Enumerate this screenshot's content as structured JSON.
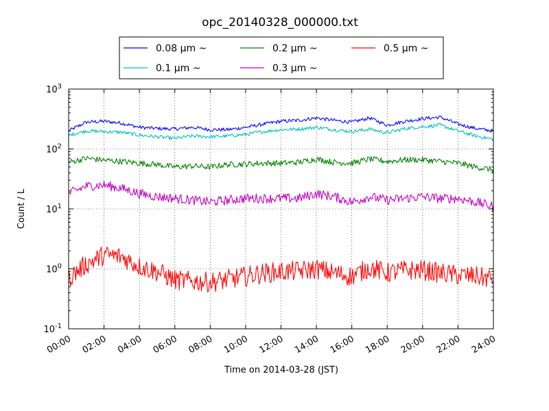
{
  "chart_data": {
    "type": "line",
    "title": "opc_20140328_000000.txt",
    "xlabel": "Time on 2014-03-28 (JST)",
    "ylabel": "Count / L",
    "yscale": "log",
    "ylim": [
      0.1,
      1000
    ],
    "xlim": [
      "00:00",
      "24:00"
    ],
    "grid": true,
    "legend_position": "top-center, above plot, 3 columns",
    "x_tick_labels": [
      "00:00",
      "02:00",
      "04:00",
      "06:00",
      "08:00",
      "10:00",
      "12:00",
      "14:00",
      "16:00",
      "18:00",
      "20:00",
      "22:00",
      "24:00"
    ],
    "y_ticks": [
      {
        "value": 0.1,
        "base": "10",
        "exp": "-1"
      },
      {
        "value": 1,
        "base": "10",
        "exp": "0"
      },
      {
        "value": 10,
        "base": "10",
        "exp": "1"
      },
      {
        "value": 100,
        "base": "10",
        "exp": "2"
      },
      {
        "value": 1000,
        "base": "10",
        "exp": "3"
      }
    ],
    "x": [
      "00:00",
      "01:00",
      "02:00",
      "03:00",
      "04:00",
      "05:00",
      "06:00",
      "07:00",
      "08:00",
      "09:00",
      "10:00",
      "11:00",
      "12:00",
      "13:00",
      "14:00",
      "15:00",
      "16:00",
      "17:00",
      "18:00",
      "19:00",
      "20:00",
      "21:00",
      "22:00",
      "23:00",
      "24:00"
    ],
    "series": [
      {
        "name": "0.08 μm ~",
        "color": "#0000ff",
        "noise": 0.03,
        "values": [
          200,
          280,
          290,
          270,
          230,
          220,
          215,
          230,
          210,
          210,
          230,
          260,
          290,
          300,
          330,
          300,
          280,
          330,
          250,
          290,
          320,
          340,
          260,
          220,
          200
        ]
      },
      {
        "name": "0.1 μm ~",
        "color": "#00bfbf",
        "noise": 0.03,
        "values": [
          170,
          200,
          195,
          190,
          170,
          160,
          150,
          165,
          160,
          165,
          175,
          195,
          210,
          215,
          230,
          210,
          195,
          215,
          185,
          220,
          235,
          250,
          200,
          165,
          145
        ]
      },
      {
        "name": "0.2 μm ~",
        "color": "#008000",
        "noise": 0.05,
        "values": [
          60,
          70,
          65,
          62,
          58,
          55,
          50,
          52,
          50,
          55,
          56,
          58,
          58,
          60,
          68,
          60,
          58,
          68,
          62,
          66,
          66,
          62,
          58,
          50,
          45
        ]
      },
      {
        "name": "0.3 μm ~",
        "color": "#bf00bf",
        "noise": 0.08,
        "values": [
          18,
          24,
          25,
          22,
          18,
          16,
          15,
          14,
          13,
          14,
          15,
          15,
          15,
          15,
          18,
          16,
          13,
          16,
          14,
          15,
          16,
          15,
          15,
          13,
          11
        ]
      },
      {
        "name": "0.5 μm ~",
        "color": "#ff0000",
        "noise": 0.17,
        "values": [
          0.7,
          1.2,
          1.7,
          1.6,
          1.1,
          0.9,
          0.65,
          0.62,
          0.6,
          0.66,
          0.75,
          0.85,
          0.9,
          0.92,
          1.0,
          0.85,
          0.75,
          1.05,
          0.85,
          0.95,
          0.95,
          0.85,
          0.78,
          0.75,
          0.68
        ]
      }
    ]
  }
}
